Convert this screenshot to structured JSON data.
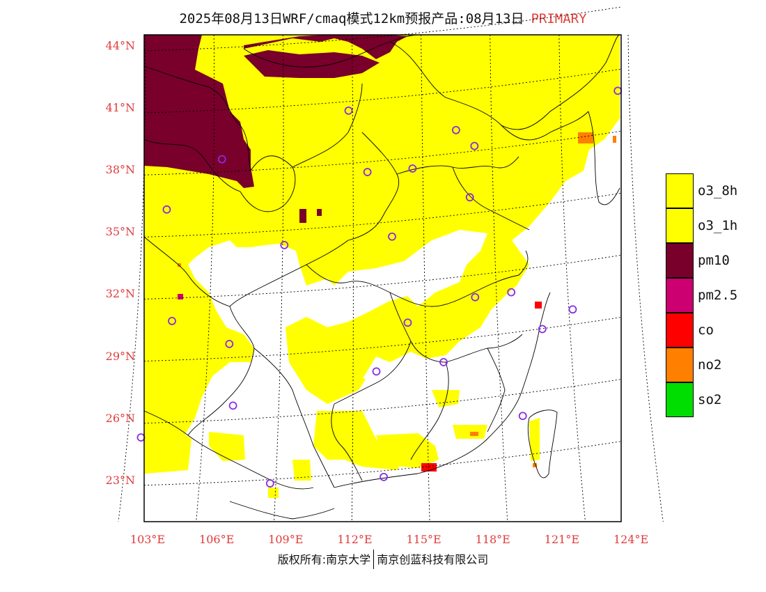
{
  "title": {
    "main": "2025年08月13日WRF/cmaq模式12km预报产品:08月13日",
    "tag": "PRIMARY"
  },
  "map": {
    "lon_range": [
      103,
      124
    ],
    "lat_range": [
      21,
      44
    ],
    "lat_ticks": [
      "44°N",
      "41°N",
      "38°N",
      "35°N",
      "32°N",
      "29°N",
      "26°N",
      "23°N"
    ],
    "lat_values": [
      44,
      41,
      38,
      35,
      32,
      29,
      26,
      23
    ],
    "lon_ticks": [
      "103°E",
      "106°E",
      "109°E",
      "112°E",
      "115°E",
      "118°E",
      "121°E",
      "124°E"
    ],
    "lon_values": [
      103,
      106,
      109,
      112,
      115,
      118,
      121,
      124
    ],
    "colors": {
      "o3": "#ffff00",
      "pm10": "#78002a",
      "pm25": "#cc0070",
      "co": "#ff0000",
      "no2": "#ff7f00",
      "so2": "#00dd00",
      "marker": "#8a2be2"
    },
    "stations": [
      {
        "lon": 104.06,
        "lat": 30.67
      },
      {
        "lon": 106.55,
        "lat": 29.56
      },
      {
        "lon": 106.71,
        "lat": 26.58
      },
      {
        "lon": 102.71,
        "lat": 25.04
      },
      {
        "lon": 108.32,
        "lat": 22.82
      },
      {
        "lon": 113.26,
        "lat": 23.13
      },
      {
        "lon": 112.94,
        "lat": 28.23
      },
      {
        "lon": 114.3,
        "lat": 30.59
      },
      {
        "lon": 115.86,
        "lat": 28.68
      },
      {
        "lon": 119.3,
        "lat": 26.08
      },
      {
        "lon": 120.15,
        "lat": 30.28
      },
      {
        "lon": 121.47,
        "lat": 31.23
      },
      {
        "lon": 118.8,
        "lat": 32.06
      },
      {
        "lon": 117.23,
        "lat": 31.82
      },
      {
        "lon": 113.62,
        "lat": 34.75
      },
      {
        "lon": 108.94,
        "lat": 34.34
      },
      {
        "lon": 103.83,
        "lat": 36.06
      },
      {
        "lon": 106.23,
        "lat": 38.49
      },
      {
        "lon": 111.73,
        "lat": 40.84
      },
      {
        "lon": 112.55,
        "lat": 37.87
      },
      {
        "lon": 114.51,
        "lat": 38.04
      },
      {
        "lon": 116.4,
        "lat": 39.9
      },
      {
        "lon": 117.2,
        "lat": 39.13
      },
      {
        "lon": 117.0,
        "lat": 36.65
      },
      {
        "lon": 123.43,
        "lat": 41.8
      }
    ]
  },
  "legend": [
    {
      "label": "o3_8h",
      "color": "#ffff00"
    },
    {
      "label": "o3_1h",
      "color": "#ffff00"
    },
    {
      "label": "pm10",
      "color": "#78002a"
    },
    {
      "label": "pm2.5",
      "color": "#cc0070"
    },
    {
      "label": "co",
      "color": "#ff0000"
    },
    {
      "label": "no2",
      "color": "#ff7f00"
    },
    {
      "label": "so2",
      "color": "#00dd00"
    }
  ],
  "footer": {
    "left": "版权所有:南京大学",
    "right": "南京创蓝科技有限公司"
  }
}
